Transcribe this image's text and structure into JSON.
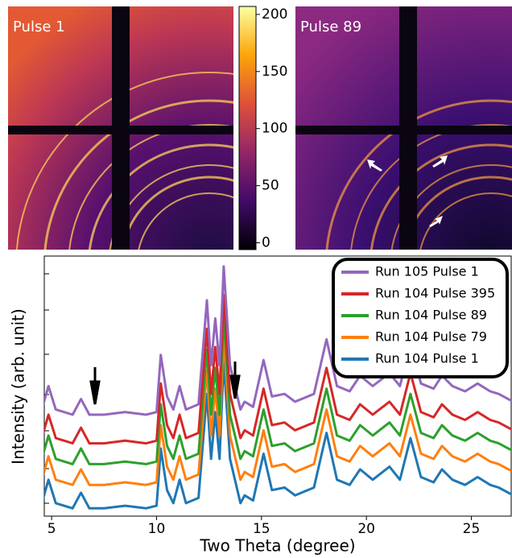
{
  "panels": [
    {
      "label": "Pulse 1"
    },
    {
      "label": "Pulse 89"
    }
  ],
  "colorbar": {
    "ylim": [
      -6,
      207
    ],
    "yticks": [
      0,
      50,
      100,
      150,
      200
    ]
  },
  "chart_data": {
    "type": "line",
    "xlabel": "Two Theta (degree)",
    "ylabel": "Intensity (arb. unit)",
    "xlim": [
      4.65,
      26.9
    ],
    "xticks": [
      5,
      10,
      15,
      20,
      25
    ],
    "ylim": [
      0,
      100
    ],
    "x": [
      4.5,
      4.85,
      5.2,
      6.0,
      6.4,
      6.8,
      7.1,
      7.5,
      8.5,
      9.5,
      10.0,
      10.2,
      10.5,
      10.8,
      11.1,
      11.4,
      12.0,
      12.4,
      12.6,
      12.8,
      13.0,
      13.2,
      13.5,
      14.0,
      14.2,
      14.6,
      15.1,
      15.5,
      16.1,
      16.6,
      17.5,
      18.1,
      18.6,
      19.2,
      19.7,
      20.3,
      21.1,
      21.6,
      22.1,
      22.6,
      23.2,
      23.6,
      24.1,
      24.7,
      25.3,
      25.9,
      26.3,
      27.0
    ],
    "series": [
      {
        "name": "Run 105 Pulse 1",
        "color": "#9467bd",
        "values": [
          40,
          50,
          41,
          39,
          45,
          39,
          39,
          39,
          40,
          39,
          40,
          62,
          46,
          41,
          50,
          41,
          43,
          83,
          58,
          76,
          58,
          96,
          58,
          41,
          44,
          42,
          60,
          46,
          47,
          44,
          47,
          68,
          50,
          48,
          54,
          50,
          55,
          50,
          66,
          51,
          49,
          54,
          50,
          48,
          51,
          48,
          47,
          44
        ]
      },
      {
        "name": "Run 104 Pulse 395",
        "color": "#d62728",
        "values": [
          29,
          39,
          30,
          28,
          34,
          28,
          28,
          28,
          29,
          28,
          29,
          51,
          35,
          30,
          39,
          30,
          32,
          72,
          47,
          65,
          47,
          85,
          47,
          30,
          33,
          31,
          49,
          35,
          36,
          33,
          36,
          57,
          39,
          37,
          43,
          39,
          44,
          39,
          55,
          40,
          38,
          43,
          39,
          37,
          40,
          37,
          36,
          33
        ]
      },
      {
        "name": "Run 104 Pulse 89",
        "color": "#2ca02c",
        "values": [
          21,
          31,
          22,
          20,
          26,
          20,
          20,
          20,
          21,
          20,
          21,
          43,
          27,
          22,
          31,
          22,
          24,
          64,
          39,
          57,
          39,
          77,
          39,
          22,
          25,
          23,
          41,
          27,
          28,
          25,
          28,
          49,
          31,
          29,
          35,
          31,
          36,
          31,
          47,
          32,
          30,
          35,
          31,
          29,
          32,
          29,
          28,
          25
        ]
      },
      {
        "name": "Run 104 Pulse 79",
        "color": "#ff7f0e",
        "values": [
          13,
          23,
          14,
          12,
          18,
          12,
          12,
          12,
          13,
          12,
          13,
          35,
          19,
          14,
          23,
          14,
          16,
          56,
          31,
          49,
          31,
          69,
          31,
          14,
          17,
          15,
          33,
          19,
          20,
          17,
          20,
          41,
          23,
          21,
          27,
          23,
          28,
          23,
          39,
          24,
          22,
          27,
          23,
          21,
          24,
          21,
          20,
          17
        ]
      },
      {
        "name": "Run 104 Pulse 1",
        "color": "#1f77b4",
        "values": [
          4,
          14,
          5,
          3,
          9,
          3,
          3,
          3,
          4,
          3,
          4,
          26,
          10,
          5,
          14,
          5,
          7,
          47,
          22,
          40,
          22,
          60,
          22,
          5,
          8,
          6,
          24,
          10,
          11,
          8,
          11,
          32,
          14,
          12,
          18,
          14,
          19,
          14,
          30,
          15,
          13,
          18,
          14,
          12,
          15,
          12,
          11,
          8
        ]
      }
    ]
  }
}
